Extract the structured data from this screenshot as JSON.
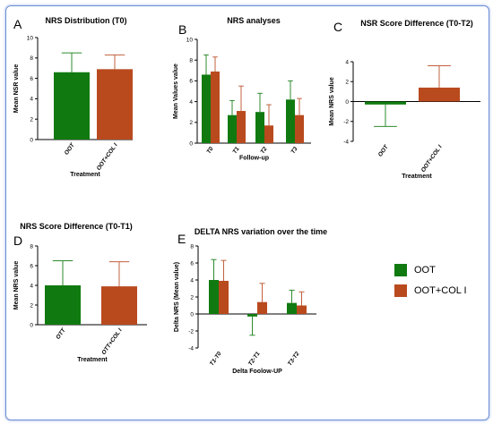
{
  "colors": {
    "oot": "#107a10",
    "oot_col": "#b94a1e",
    "err_oot": "#2e8b2e",
    "err_col": "#c0613d"
  },
  "legend": {
    "items": [
      {
        "label": "OOT",
        "color": "#107a10"
      },
      {
        "label": "OOT+COL I",
        "color": "#b94a1e"
      }
    ]
  },
  "chart_data": [
    {
      "id": "A",
      "letter": "A",
      "type": "bar",
      "title": "NRS Distribution (T0)",
      "xlabel": "Treatment",
      "ylabel": "Mean NSR value",
      "ylim": [
        0,
        10
      ],
      "yticks": [
        "0",
        "2",
        "4",
        "6",
        "8",
        "10"
      ],
      "categories": [
        "OOT",
        "OOT+COL I"
      ],
      "values": [
        6.6,
        6.9
      ],
      "errors": [
        1.9,
        1.4
      ],
      "colors": [
        "#107a10",
        "#b94a1e"
      ]
    },
    {
      "id": "B",
      "letter": "B",
      "type": "bar",
      "title": "NRS analyses",
      "xlabel": "Follow-up",
      "ylabel": "Mean Values value",
      "ylim": [
        0,
        10
      ],
      "yticks": [
        "0",
        "2",
        "4",
        "6",
        "8",
        "10"
      ],
      "categories": [
        "T0",
        "T1",
        "T2",
        "T3"
      ],
      "series": [
        {
          "name": "OOT",
          "values": [
            6.6,
            2.7,
            3.0,
            4.2
          ],
          "errors": [
            1.9,
            1.4,
            1.8,
            1.8
          ],
          "color": "#107a10"
        },
        {
          "name": "OOT+COL I",
          "values": [
            6.9,
            3.1,
            1.7,
            2.7
          ],
          "errors": [
            1.4,
            2.4,
            2.0,
            1.6
          ],
          "color": "#b94a1e"
        }
      ]
    },
    {
      "id": "C",
      "letter": "C",
      "type": "bar",
      "title": "NSR Score Difference (T0-T2)",
      "xlabel": "Treatment",
      "ylabel": "Mean NRS value",
      "ylim": [
        -4,
        4
      ],
      "yticks": [
        "-4",
        "-2",
        "0",
        "2",
        "4"
      ],
      "categories": [
        "OOT",
        "OOT+COL I"
      ],
      "values": [
        -0.3,
        1.4
      ],
      "errors": [
        2.2,
        2.2
      ],
      "colors": [
        "#107a10",
        "#b94a1e"
      ]
    },
    {
      "id": "D",
      "letter": "D",
      "type": "bar",
      "title": "NRS Score Difference (T0-T1)",
      "xlabel": "Treatment",
      "ylabel": "Mean NRS value",
      "ylim": [
        0,
        8
      ],
      "yticks": [
        "0",
        "2",
        "4",
        "6",
        "8"
      ],
      "categories": [
        "OTT",
        "OTT+COL I"
      ],
      "values": [
        4.0,
        3.9
      ],
      "errors": [
        2.5,
        2.5
      ],
      "colors": [
        "#107a10",
        "#b94a1e"
      ]
    },
    {
      "id": "E",
      "letter": "E",
      "type": "bar",
      "title": "DELTA NRS variation over the time",
      "xlabel": "Delta Foolow-UP",
      "ylabel": "Delta NRS (Mean value)",
      "ylim": [
        -4,
        8
      ],
      "yticks": [
        "-4",
        "-2",
        "0",
        "2",
        "4",
        "6",
        "8"
      ],
      "categories": [
        "T1-T0",
        "T2-T1",
        "T3-T2"
      ],
      "series": [
        {
          "name": "OOT",
          "values": [
            4.0,
            -0.3,
            1.3
          ],
          "errors": [
            2.4,
            2.2,
            1.5
          ],
          "color": "#107a10"
        },
        {
          "name": "OOT+COL I",
          "values": [
            3.9,
            1.4,
            1.0
          ],
          "errors": [
            2.4,
            2.2,
            1.6
          ],
          "color": "#b94a1e"
        }
      ]
    }
  ]
}
